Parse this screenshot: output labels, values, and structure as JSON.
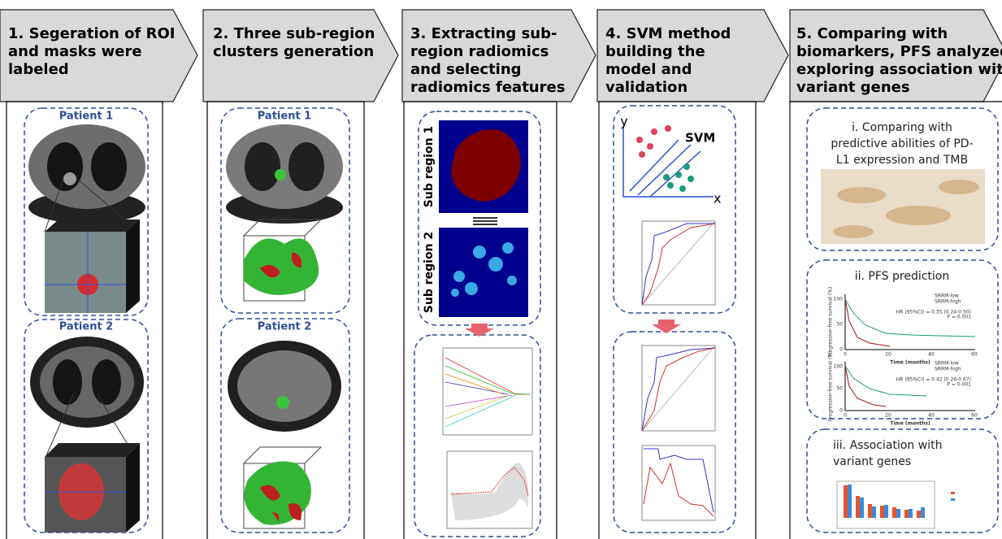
{
  "steps": [
    {
      "title_lines": [
        "1. Segeration of ROI",
        "and masks were",
        "labeled"
      ],
      "patients": [
        "Patient 1",
        "Patient 2"
      ]
    },
    {
      "title_lines": [
        "2. Three sub-region",
        "clusters generation"
      ],
      "patients": [
        "Patient 1",
        "Patient 2"
      ]
    },
    {
      "title_lines": [
        "3. Extracting sub-",
        "region radiomics",
        "and selecting",
        "radiomics features"
      ],
      "sub_regions": [
        "Sub region 1",
        "Sub region 2"
      ]
    },
    {
      "title_lines": [
        "4. SVM method",
        "building the",
        "model and",
        "validation"
      ],
      "svm_label": "SVM",
      "axis_y": "y",
      "axis_x": "x"
    },
    {
      "title_lines": [
        "5. Comparing with",
        "biomarkers, PFS analyzed,",
        "exploring association with",
        "variant genes"
      ],
      "sections": [
        {
          "title_lines": [
            "i. Comparing with",
            "predictive abilities of PD-",
            "L1 expression and TMB"
          ]
        },
        {
          "title_lines": [
            "ii. PFS prediction"
          ]
        },
        {
          "title_lines": [
            "iii. Association with",
            "variant genes"
          ]
        }
      ],
      "pfs_plots": [
        {
          "legend": [
            "SRRM-low",
            "SRRM-high"
          ],
          "hr": "HR (95%CI) = 0.35 (0.24-0.50)",
          "p": "P = 0.001",
          "x_label": "Time (months)",
          "y_label": "Progression-free survival (%)",
          "yticks": [
            "100",
            "50",
            "0"
          ],
          "xticks": [
            "0",
            "20",
            "40",
            "60"
          ]
        },
        {
          "legend": [
            "SRRM-low",
            "SRRM-high"
          ],
          "hr": "HR (95%CI) = 0.42 (0.26-0.67)",
          "p": "P = 0.001",
          "x_label": "Time (months)",
          "y_label": "Progression-free survival (%)",
          "yticks": [
            "100",
            "50",
            "0"
          ],
          "xticks": [
            "0",
            "20",
            "40",
            "60"
          ]
        }
      ]
    }
  ]
}
